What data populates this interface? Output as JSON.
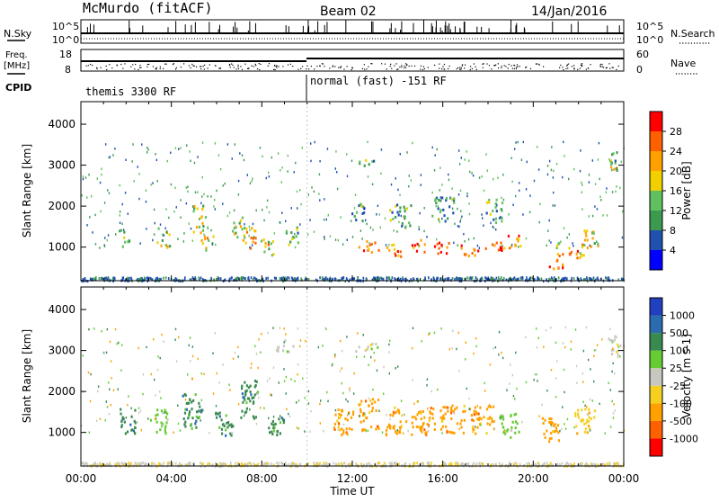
{
  "header": {
    "station": "McMurdo (fitACF)",
    "beam": "Beam 02",
    "date": "14/Jan/2016"
  },
  "top_panels": {
    "nsky_label": "N.Sky",
    "nsky_ticks": [
      "10^5",
      "10^0"
    ],
    "nsearch_label": "N.Search",
    "nsearch_ticks": [
      "10^5",
      "10^0"
    ],
    "freq_label_1": "Freq.",
    "freq_label_2": "[MHz]",
    "freq_ticks": [
      "18",
      "8"
    ],
    "nave_label": "Nave",
    "nave_ticks": [
      "60",
      "0"
    ],
    "cpid_label": "CPID",
    "cpid_segments": [
      {
        "label": "themis 3300 RF",
        "start_hour": 0,
        "end_hour": 10
      },
      {
        "label": "normal (fast) -151 RF",
        "start_hour": 10,
        "end_hour": 24
      }
    ]
  },
  "chart_data": [
    {
      "type": "heatmap",
      "panel": "power",
      "ylabel": "Slant Range [km]",
      "ylim": [
        180,
        4550
      ],
      "yticks": [
        1000,
        2000,
        3000,
        4000
      ],
      "xlim": [
        0,
        24
      ],
      "colorbar": {
        "label": "Power [dB]",
        "range": [
          0,
          32
        ],
        "ticks": [
          "28",
          "24",
          "20",
          "16",
          "12",
          "8",
          "4"
        ],
        "colors": [
          "#0000ff",
          "#2050b0",
          "#3c9a50",
          "#60c060",
          "#f0d000",
          "#ffa000",
          "#ff6000",
          "#ff0000"
        ]
      },
      "blobs": [
        {
          "t": 1.9,
          "r": 1250,
          "dt": 0.25,
          "dr": 220,
          "v": 14
        },
        {
          "t": 3.6,
          "r": 1250,
          "dt": 0.3,
          "dr": 250,
          "v": 16
        },
        {
          "t": 5.2,
          "r": 1700,
          "dt": 0.3,
          "dr": 350,
          "v": 16
        },
        {
          "t": 5.6,
          "r": 1100,
          "dt": 0.3,
          "dr": 200,
          "v": 18
        },
        {
          "t": 6.9,
          "r": 1500,
          "dt": 0.3,
          "dr": 300,
          "v": 15
        },
        {
          "t": 7.4,
          "r": 1250,
          "dt": 0.3,
          "dr": 250,
          "v": 20
        },
        {
          "t": 8.2,
          "r": 1000,
          "dt": 0.35,
          "dr": 220,
          "v": 18
        },
        {
          "t": 9.3,
          "r": 1300,
          "dt": 0.3,
          "dr": 260,
          "v": 14
        },
        {
          "t": 12.6,
          "r": 3050,
          "dt": 0.4,
          "dr": 100,
          "v": 13
        },
        {
          "t": 12.2,
          "r": 1850,
          "dt": 0.3,
          "dr": 250,
          "v": 10
        },
        {
          "t": 14.1,
          "r": 1800,
          "dt": 0.5,
          "dr": 300,
          "v": 11
        },
        {
          "t": 16.0,
          "r": 1950,
          "dt": 0.5,
          "dr": 300,
          "v": 11
        },
        {
          "t": 18.2,
          "r": 1900,
          "dt": 0.4,
          "dr": 300,
          "v": 12
        },
        {
          "t": 12.7,
          "r": 1050,
          "dt": 0.45,
          "dr": 150,
          "v": 26
        },
        {
          "t": 13.9,
          "r": 950,
          "dt": 0.45,
          "dr": 150,
          "v": 25
        },
        {
          "t": 14.9,
          "r": 1050,
          "dt": 0.35,
          "dr": 150,
          "v": 24
        },
        {
          "t": 15.9,
          "r": 1000,
          "dt": 0.45,
          "dr": 150,
          "v": 27
        },
        {
          "t": 17.1,
          "r": 950,
          "dt": 0.45,
          "dr": 150,
          "v": 27
        },
        {
          "t": 18.3,
          "r": 1000,
          "dt": 0.45,
          "dr": 150,
          "v": 26
        },
        {
          "t": 19.2,
          "r": 1150,
          "dt": 0.35,
          "dr": 180,
          "v": 24
        },
        {
          "t": 21.6,
          "r": 950,
          "dt": 0.6,
          "dr": 200,
          "v": 22
        },
        {
          "t": 21.0,
          "r": 600,
          "dt": 0.45,
          "dr": 120,
          "v": 26
        },
        {
          "t": 22.5,
          "r": 1200,
          "dt": 0.4,
          "dr": 250,
          "v": 18
        },
        {
          "t": 23.6,
          "r": 3150,
          "dt": 0.3,
          "dr": 250,
          "v": 14
        }
      ]
    },
    {
      "type": "heatmap",
      "panel": "velocity",
      "ylabel": "Slant Range [km]",
      "xlabel": "Time UT",
      "ylim": [
        180,
        4550
      ],
      "yticks": [
        1000,
        2000,
        3000,
        4000
      ],
      "xlim": [
        0,
        24
      ],
      "xticks": [
        "00:00",
        "04:00",
        "08:00",
        "12:00",
        "16:00",
        "20:00",
        "00:00"
      ],
      "colorbar": {
        "label": "Velocity [m s-1]",
        "ticks": [
          "1000",
          "500",
          "100",
          "25",
          "-25",
          "-100",
          "-500",
          "-1000"
        ],
        "colors": [
          "#2040c0",
          "#2b6cb0",
          "#3a8a50",
          "#66cc33",
          "#c8c8c0",
          "#f5d020",
          "#ffa000",
          "#ff6000",
          "#ff0000"
        ]
      },
      "blobs": [
        {
          "t": 2.0,
          "r": 1300,
          "dt": 0.4,
          "dr": 300,
          "c": 2
        },
        {
          "t": 3.4,
          "r": 1300,
          "dt": 0.4,
          "dr": 300,
          "c": 3
        },
        {
          "t": 4.9,
          "r": 1550,
          "dt": 0.45,
          "dr": 450,
          "c": 2
        },
        {
          "t": 6.3,
          "r": 1250,
          "dt": 0.4,
          "dr": 300,
          "c": 2
        },
        {
          "t": 7.4,
          "r": 1800,
          "dt": 0.4,
          "dr": 500,
          "c": 2
        },
        {
          "t": 8.6,
          "r": 1250,
          "dt": 0.35,
          "dr": 300,
          "c": 2
        },
        {
          "t": 9.0,
          "r": 3150,
          "dt": 0.4,
          "dr": 150,
          "c": 4
        },
        {
          "t": 11.6,
          "r": 1300,
          "dt": 0.45,
          "dr": 350,
          "c": 6
        },
        {
          "t": 12.7,
          "r": 1450,
          "dt": 0.45,
          "dr": 400,
          "c": 6
        },
        {
          "t": 13.9,
          "r": 1300,
          "dt": 0.45,
          "dr": 350,
          "c": 6
        },
        {
          "t": 15.1,
          "r": 1300,
          "dt": 0.55,
          "dr": 350,
          "c": 6
        },
        {
          "t": 16.4,
          "r": 1350,
          "dt": 0.55,
          "dr": 350,
          "c": 6
        },
        {
          "t": 17.7,
          "r": 1350,
          "dt": 0.55,
          "dr": 350,
          "c": 6
        },
        {
          "t": 18.9,
          "r": 1200,
          "dt": 0.45,
          "dr": 300,
          "c": 3
        },
        {
          "t": 20.8,
          "r": 1100,
          "dt": 0.45,
          "dr": 300,
          "c": 6
        },
        {
          "t": 22.2,
          "r": 1300,
          "dt": 0.5,
          "dr": 300,
          "c": 5
        },
        {
          "t": 12.6,
          "r": 3100,
          "dt": 0.5,
          "dr": 100,
          "c": 4
        },
        {
          "t": 23.6,
          "r": 3150,
          "dt": 0.3,
          "dr": 250,
          "c": 4
        }
      ]
    }
  ]
}
